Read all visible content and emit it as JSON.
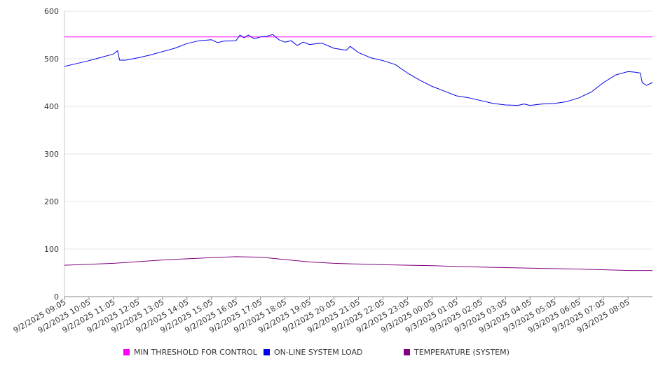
{
  "chart_data": {
    "type": "line",
    "title": "",
    "xlabel": "",
    "ylabel": "",
    "ylim": [
      0,
      600
    ],
    "y_ticks": [
      0,
      100,
      200,
      300,
      400,
      500,
      600
    ],
    "grid": true,
    "legend_position": "bottom",
    "x_ticks": [
      "9/2/2025 09:05",
      "9/2/2025 10:05",
      "9/2/2025 11:05",
      "9/2/2025 12:05",
      "9/2/2025 13:05",
      "9/2/2025 14:05",
      "9/2/2025 15:05",
      "9/2/2025 16:05",
      "9/2/2025 17:05",
      "9/2/2025 18:05",
      "9/2/2025 19:05",
      "9/2/2025 20:05",
      "9/2/2025 21:05",
      "9/2/2025 22:05",
      "9/2/2025 23:05",
      "9/3/2025 00:05",
      "9/3/2025 01:05",
      "9/3/2025 02:05",
      "9/3/2025 03:05",
      "9/3/2025 04:05",
      "9/3/2025 05:05",
      "9/3/2025 06:05",
      "9/3/2025 07:05",
      "9/3/2025 08:05"
    ],
    "x_end": "9/3/2025 09:05",
    "series": [
      {
        "name": "MIN THRESHOLD FOR CONTROL",
        "color": "#ff00ff",
        "points": [
          [
            "9/2/2025 09:05",
            546
          ],
          [
            "9/3/2025 09:05",
            546
          ]
        ]
      },
      {
        "name": "ON-LINE SYSTEM LOAD",
        "color": "#0000ee",
        "points": [
          [
            "9/2/2025 09:05",
            484
          ],
          [
            "9/2/2025 09:35",
            490
          ],
          [
            "9/2/2025 10:05",
            496
          ],
          [
            "9/2/2025 10:35",
            503
          ],
          [
            "9/2/2025 11:05",
            510
          ],
          [
            "9/2/2025 11:15",
            517
          ],
          [
            "9/2/2025 11:20",
            497
          ],
          [
            "9/2/2025 11:35",
            497
          ],
          [
            "9/2/2025 12:05",
            502
          ],
          [
            "9/2/2025 12:35",
            508
          ],
          [
            "9/2/2025 13:05",
            515
          ],
          [
            "9/2/2025 13:35",
            522
          ],
          [
            "9/2/2025 14:05",
            532
          ],
          [
            "9/2/2025 14:35",
            538
          ],
          [
            "9/2/2025 15:05",
            540
          ],
          [
            "9/2/2025 15:20",
            534
          ],
          [
            "9/2/2025 15:35",
            537
          ],
          [
            "9/2/2025 16:05",
            538
          ],
          [
            "9/2/2025 16:15",
            550
          ],
          [
            "9/2/2025 16:25",
            544
          ],
          [
            "9/2/2025 16:35",
            550
          ],
          [
            "9/2/2025 16:50",
            542
          ],
          [
            "9/2/2025 17:05",
            546
          ],
          [
            "9/2/2025 17:20",
            547
          ],
          [
            "9/2/2025 17:35",
            551
          ],
          [
            "9/2/2025 17:50",
            540
          ],
          [
            "9/2/2025 18:05",
            535
          ],
          [
            "9/2/2025 18:20",
            538
          ],
          [
            "9/2/2025 18:35",
            528
          ],
          [
            "9/2/2025 18:50",
            535
          ],
          [
            "9/2/2025 19:05",
            530
          ],
          [
            "9/2/2025 19:35",
            533
          ],
          [
            "9/2/2025 20:05",
            522
          ],
          [
            "9/2/2025 20:35",
            518
          ],
          [
            "9/2/2025 20:45",
            526
          ],
          [
            "9/2/2025 21:05",
            513
          ],
          [
            "9/2/2025 21:35",
            502
          ],
          [
            "9/2/2025 22:05",
            496
          ],
          [
            "9/2/2025 22:35",
            488
          ],
          [
            "9/2/2025 23:05",
            470
          ],
          [
            "9/2/2025 23:35",
            455
          ],
          [
            "9/3/2025 00:05",
            442
          ],
          [
            "9/3/2025 00:35",
            432
          ],
          [
            "9/3/2025 01:05",
            422
          ],
          [
            "9/3/2025 01:35",
            418
          ],
          [
            "9/3/2025 02:05",
            412
          ],
          [
            "9/3/2025 02:35",
            406
          ],
          [
            "9/3/2025 03:05",
            403
          ],
          [
            "9/3/2025 03:35",
            402
          ],
          [
            "9/3/2025 03:50",
            405
          ],
          [
            "9/3/2025 04:05",
            402
          ],
          [
            "9/3/2025 04:35",
            405
          ],
          [
            "9/3/2025 05:05",
            406
          ],
          [
            "9/3/2025 05:35",
            410
          ],
          [
            "9/3/2025 06:05",
            418
          ],
          [
            "9/3/2025 06:35",
            430
          ],
          [
            "9/3/2025 07:05",
            450
          ],
          [
            "9/3/2025 07:35",
            466
          ],
          [
            "9/3/2025 08:05",
            473
          ],
          [
            "9/3/2025 08:20",
            472
          ],
          [
            "9/3/2025 08:35",
            470
          ],
          [
            "9/3/2025 08:40",
            450
          ],
          [
            "9/3/2025 08:50",
            444
          ],
          [
            "9/3/2025 09:05",
            450
          ]
        ]
      },
      {
        "name": "TEMPERATURE (SYSTEM)",
        "color": "#800080",
        "points": [
          [
            "9/2/2025 09:05",
            66
          ],
          [
            "9/2/2025 11:05",
            70
          ],
          [
            "9/2/2025 13:05",
            77
          ],
          [
            "9/2/2025 15:05",
            82
          ],
          [
            "9/2/2025 16:05",
            84
          ],
          [
            "9/2/2025 17:05",
            83
          ],
          [
            "9/2/2025 18:05",
            78
          ],
          [
            "9/2/2025 19:05",
            73
          ],
          [
            "9/2/2025 20:05",
            70
          ],
          [
            "9/2/2025 22:05",
            67
          ],
          [
            "9/3/2025 00:05",
            65
          ],
          [
            "9/3/2025 02:05",
            62
          ],
          [
            "9/3/2025 04:05",
            60
          ],
          [
            "9/3/2025 06:05",
            58
          ],
          [
            "9/3/2025 08:05",
            55
          ],
          [
            "9/3/2025 09:05",
            55
          ]
        ]
      }
    ]
  }
}
